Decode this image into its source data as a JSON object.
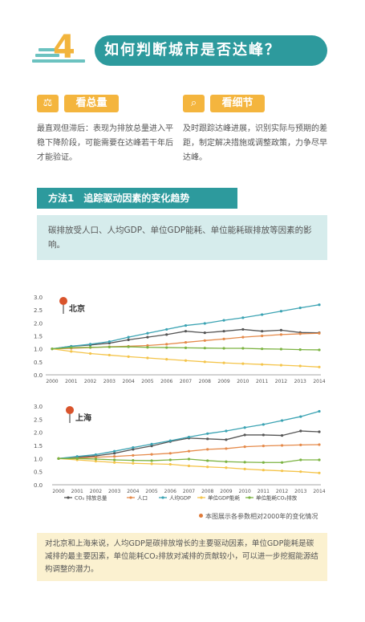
{
  "header": {
    "number": "4",
    "title": "如何判断城市是否达峰？"
  },
  "left_col": {
    "icon": "scale-icon",
    "tag": "看总量",
    "text": "最直观但滞后：表现为排放总量进入平稳下降阶段，可能需要在达峰若干年后才能验证。"
  },
  "right_col": {
    "icon": "magnifier-icon",
    "tag": "看细节",
    "text": "及时跟踪达峰进展，识别实际与预期的差距，制定解决措施或调整政策，力争尽早达峰。"
  },
  "method": {
    "title": "方法1　追踪驱动因素的变化趋势",
    "desc": "碳排放受人口、人均GDP、单位GDP能耗、单位能耗碳排放等因素的影响。"
  },
  "colors": {
    "co2": "#555555",
    "population": "#e58a4a",
    "gdp_per_capita": "#3ba3b3",
    "energy_per_gdp": "#f4c44a",
    "co2_per_energy": "#7cb342"
  },
  "chart_data": [
    {
      "type": "line",
      "title": "北京",
      "x": [
        "2000",
        "2001",
        "2002",
        "2003",
        "2004",
        "2005",
        "2006",
        "2007",
        "2008",
        "2009",
        "2010",
        "2011",
        "2012",
        "2013",
        "2014"
      ],
      "ylim": [
        0,
        3.0
      ],
      "yticks": [
        "0.0",
        "0.5",
        "1.0",
        "1.5",
        "2.0",
        "2.5",
        "3.0"
      ],
      "grid": false,
      "series": [
        {
          "name": "CO₂ 排放总量",
          "key": "co2",
          "values": [
            1.0,
            1.1,
            1.15,
            1.22,
            1.35,
            1.45,
            1.55,
            1.68,
            1.62,
            1.68,
            1.75,
            1.68,
            1.72,
            1.63,
            1.62
          ]
        },
        {
          "name": "人口",
          "key": "population",
          "values": [
            1.0,
            1.02,
            1.05,
            1.08,
            1.1,
            1.13,
            1.18,
            1.25,
            1.32,
            1.38,
            1.45,
            1.5,
            1.55,
            1.58,
            1.6
          ]
        },
        {
          "name": "人均GDP",
          "key": "gdp_per_capita",
          "values": [
            1.0,
            1.1,
            1.18,
            1.28,
            1.45,
            1.6,
            1.75,
            1.9,
            1.98,
            2.1,
            2.2,
            2.32,
            2.45,
            2.58,
            2.7
          ]
        },
        {
          "name": "单位GDP能耗",
          "key": "energy_per_gdp",
          "values": [
            1.0,
            0.9,
            0.82,
            0.76,
            0.7,
            0.65,
            0.6,
            0.55,
            0.5,
            0.46,
            0.43,
            0.4,
            0.37,
            0.34,
            0.3
          ]
        },
        {
          "name": "单位能耗CO₂排放",
          "key": "co2_per_energy",
          "values": [
            1.0,
            1.05,
            1.06,
            1.07,
            1.08,
            1.06,
            1.05,
            1.04,
            1.03,
            1.02,
            1.02,
            1.0,
            0.99,
            0.97,
            0.96
          ]
        }
      ]
    },
    {
      "type": "line",
      "title": "上海",
      "x": [
        "2000",
        "2001",
        "2002",
        "2003",
        "2004",
        "2005",
        "2006",
        "2007",
        "2008",
        "2009",
        "2010",
        "2011",
        "2012",
        "2013",
        "2014"
      ],
      "ylim": [
        0,
        3.0
      ],
      "yticks": [
        "0.0",
        "0.5",
        "1.0",
        "1.5",
        "2.0",
        "2.5",
        "3.0"
      ],
      "grid": false,
      "series": [
        {
          "name": "CO₂ 排放总量",
          "key": "co2",
          "values": [
            1.0,
            1.05,
            1.1,
            1.2,
            1.35,
            1.48,
            1.65,
            1.78,
            1.75,
            1.72,
            1.9,
            1.9,
            1.88,
            2.05,
            2.02
          ]
        },
        {
          "name": "人口",
          "key": "population",
          "values": [
            1.0,
            1.02,
            1.05,
            1.08,
            1.12,
            1.16,
            1.2,
            1.28,
            1.35,
            1.38,
            1.45,
            1.48,
            1.5,
            1.52,
            1.53
          ]
        },
        {
          "name": "人均GDP",
          "key": "gdp_per_capita",
          "values": [
            1.0,
            1.08,
            1.15,
            1.28,
            1.42,
            1.55,
            1.68,
            1.82,
            1.95,
            2.05,
            2.18,
            2.3,
            2.45,
            2.6,
            2.8
          ]
        },
        {
          "name": "单位GDP能耗",
          "key": "energy_per_gdp",
          "values": [
            1.0,
            0.95,
            0.9,
            0.85,
            0.82,
            0.8,
            0.78,
            0.72,
            0.68,
            0.65,
            0.6,
            0.56,
            0.53,
            0.5,
            0.45
          ]
        },
        {
          "name": "单位能耗CO₂排放",
          "key": "co2_per_energy",
          "values": [
            1.0,
            1.0,
            0.98,
            0.95,
            0.93,
            0.92,
            0.95,
            0.98,
            0.92,
            0.88,
            0.86,
            0.85,
            0.85,
            0.95,
            0.95
          ]
        }
      ],
      "legend_position": "bottom",
      "note": "本图展示各参数相对2000年的变化情况"
    }
  ],
  "footer": {
    "text": "对北京和上海来说，人均GDP是碳排放增长的主要驱动因素，单位GDP能耗是碳减排的最主要因素，单位能耗CO₂排放对减排的贡献较小，可以进一步挖掘能源结构调整的潜力。"
  }
}
